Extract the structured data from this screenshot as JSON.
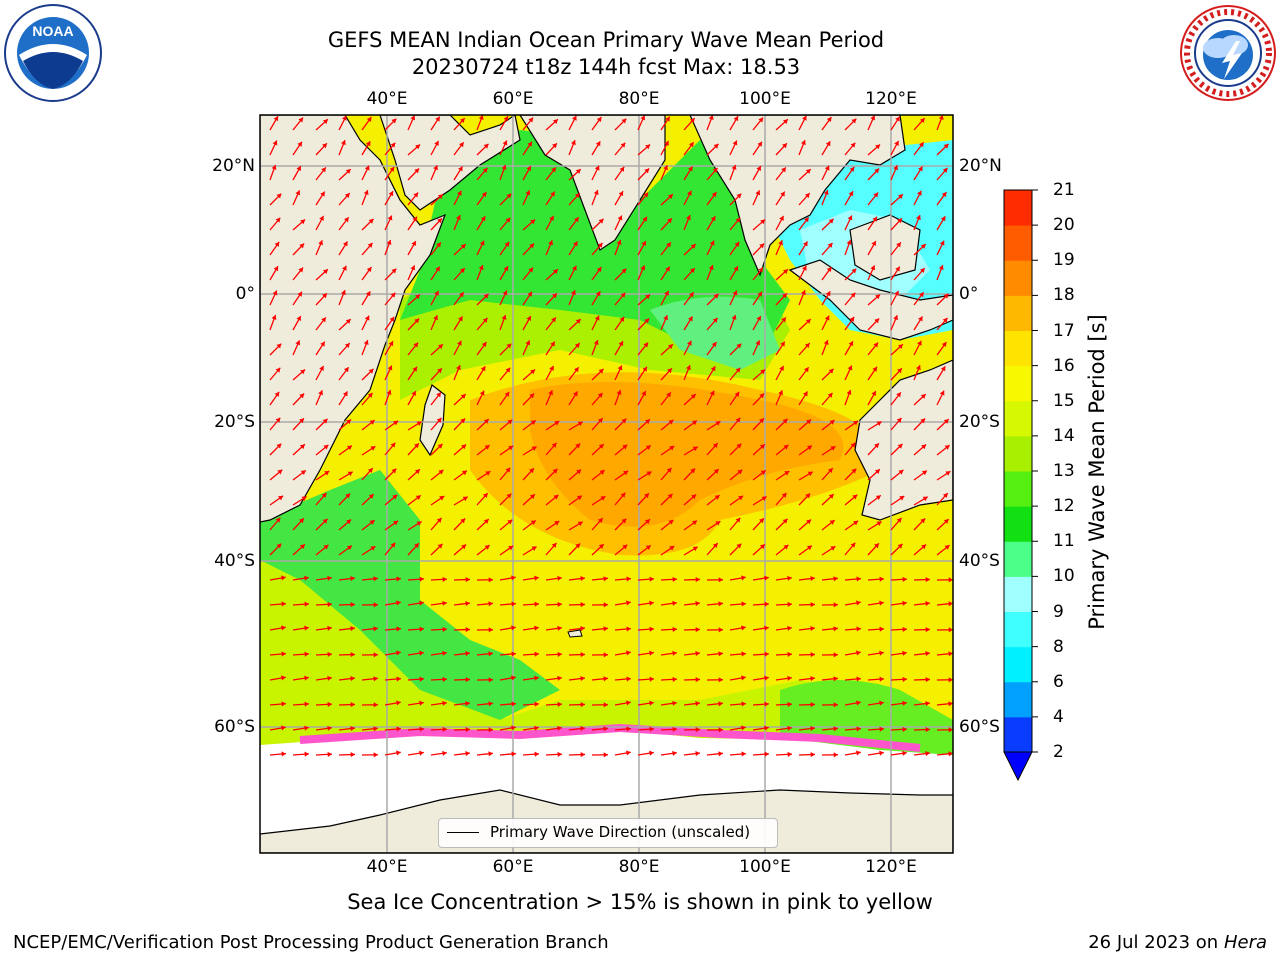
{
  "header": {
    "title_line1": "GEFS MEAN Indian Ocean Primary Wave Mean Period",
    "title_line2": "20230724 t18z 144h fcst   Max: 18.53"
  },
  "logos": {
    "left": "noaa-logo",
    "right": "nws-logo"
  },
  "map": {
    "lon_labels": [
      "40°E",
      "60°E",
      "80°E",
      "100°E",
      "120°E"
    ],
    "lat_labels": [
      "20°N",
      "0°",
      "20°S",
      "40°S",
      "60°S"
    ],
    "legend_label": "Primary Wave Direction (unscaled)",
    "vector_color": "#ff0000",
    "land_color": "#efecdc"
  },
  "colorbar": {
    "label": "Primary Wave Mean Period [s]",
    "ticks": [
      "2",
      "4",
      "6",
      "8",
      "9",
      "10",
      "11",
      "12",
      "13",
      "14",
      "15",
      "16",
      "17",
      "18",
      "19",
      "20",
      "21"
    ],
    "colors": [
      "#0a3cff",
      "#00a0ff",
      "#00f0ff",
      "#40ffff",
      "#a0ffff",
      "#4cff88",
      "#12e012",
      "#55f011",
      "#a8f000",
      "#d6f800",
      "#f8f800",
      "#ffe400",
      "#ffb800",
      "#ff8c00",
      "#ff5c00",
      "#ff2c00",
      "#ff0000"
    ],
    "extend_color": "#0000ff"
  },
  "caption": "Sea Ice Concentration > 15% is shown in pink to yellow",
  "footer": {
    "left": "NCEP/EMC/Verification Post Processing Product Generation Branch",
    "right_date": "26 Jul 2023 on",
    "right_machine": "Hera"
  }
}
